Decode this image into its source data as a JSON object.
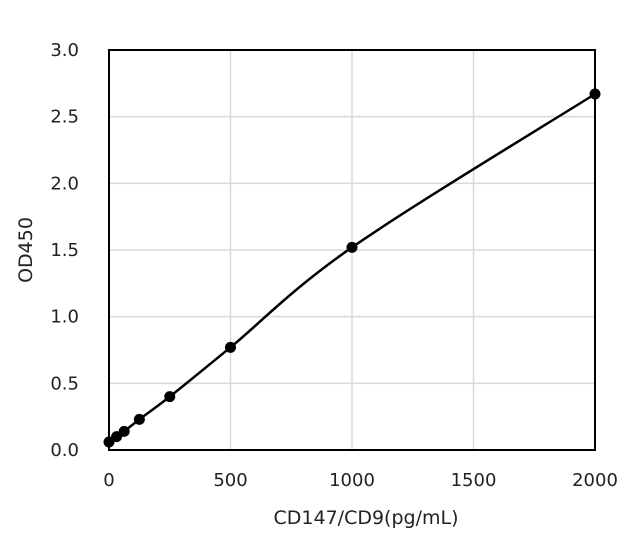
{
  "chart_data": {
    "type": "scatter",
    "title": "",
    "xlabel": "CD147/CD9(pg/mL)",
    "ylabel": "OD450",
    "xlim": [
      0,
      2000
    ],
    "ylim": [
      0,
      3.0
    ],
    "x_ticks": [
      0,
      500,
      1000,
      1500,
      2000
    ],
    "y_ticks": [
      0.0,
      0.5,
      1.0,
      1.5,
      2.0,
      2.5,
      3.0
    ],
    "x_tick_labels": [
      "0",
      "500",
      "1000",
      "1500",
      "2000"
    ],
    "y_tick_labels": [
      "0.0",
      "0.5",
      "1.0",
      "1.5",
      "2.0",
      "2.5",
      "3.0"
    ],
    "grid": true,
    "legend": "none",
    "series": [
      {
        "x": [
          0,
          31.25,
          62.5,
          125,
          250,
          500,
          1000,
          2000
        ],
        "y": [
          0.06,
          0.1,
          0.14,
          0.23,
          0.4,
          0.77,
          1.52,
          2.67
        ],
        "marker": "circle",
        "color": "#000000",
        "fit_line": "smooth"
      }
    ]
  }
}
